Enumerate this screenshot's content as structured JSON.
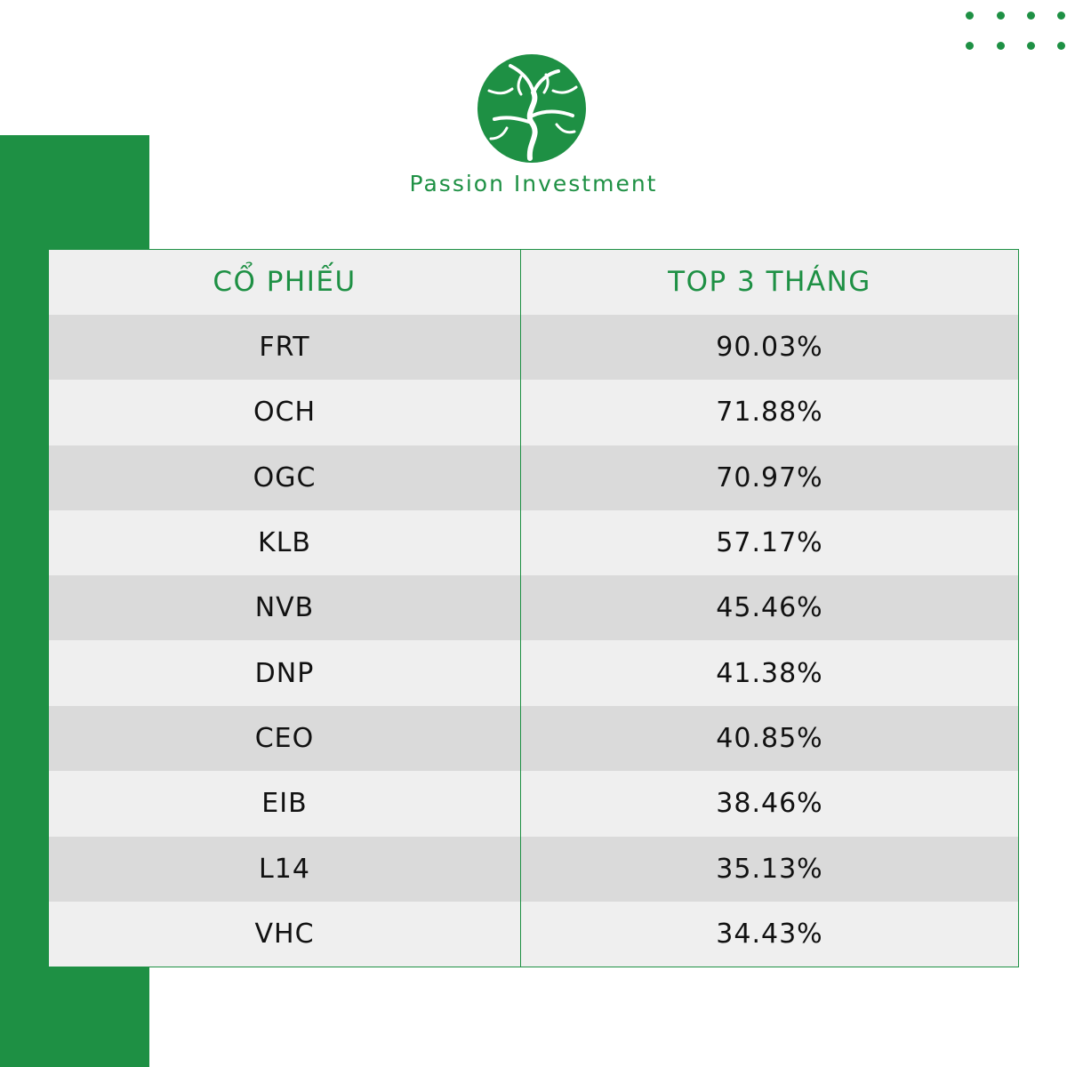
{
  "brand": {
    "name": "Passion Investment",
    "logo_icon": "tree-in-circle-icon",
    "accent_color": "#1e9044"
  },
  "table": {
    "headers": [
      "CỔ PHIẾU",
      "TOP 3 THÁNG"
    ],
    "rows": [
      {
        "ticker": "FRT",
        "value": "90.03%"
      },
      {
        "ticker": "OCH",
        "value": "71.88%"
      },
      {
        "ticker": "OGC",
        "value": "70.97%"
      },
      {
        "ticker": "KLB",
        "value": "57.17%"
      },
      {
        "ticker": "NVB",
        "value": "45.46%"
      },
      {
        "ticker": "DNP",
        "value": "41.38%"
      },
      {
        "ticker": "CEO",
        "value": "40.85%"
      },
      {
        "ticker": "EIB",
        "value": "38.46%"
      },
      {
        "ticker": "L14",
        "value": "35.13%"
      },
      {
        "ticker": "VHC",
        "value": "34.43%"
      }
    ]
  }
}
